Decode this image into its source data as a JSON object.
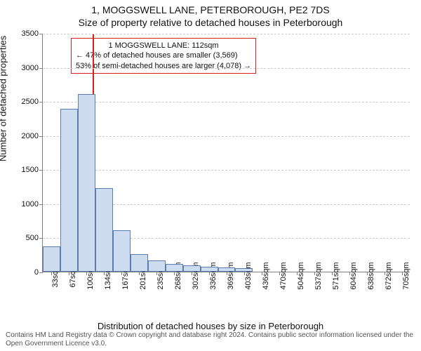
{
  "title_main": "1, MOGGSWELL LANE, PETERBOROUGH, PE2 7DS",
  "title_sub": "Size of property relative to detached houses in Peterborough",
  "y_label": "Number of detached properties",
  "x_label": "Distribution of detached houses by size in Peterborough",
  "attribution": "Contains HM Land Registry data © Crown copyright and database right 2024. Contains public sector information licensed under the Open Government Licence v3.0.",
  "chart": {
    "type": "histogram",
    "y": {
      "min": 0,
      "max": 3500,
      "tick_step": 500,
      "ticks": [
        0,
        500,
        1000,
        1500,
        2000,
        2500,
        3000,
        3500
      ],
      "grid_color": "#cccccc",
      "axis_color": "#808080",
      "tick_fontsize": 11
    },
    "x": {
      "ticks": [
        "33sqm",
        "67sqm",
        "100sqm",
        "134sqm",
        "167sqm",
        "201sqm",
        "235sqm",
        "268sqm",
        "302sqm",
        "336sqm",
        "369sqm",
        "403sqm",
        "436sqm",
        "470sqm",
        "504sqm",
        "537sqm",
        "571sqm",
        "604sqm",
        "638sqm",
        "672sqm",
        "705sqm"
      ],
      "tick_fontsize": 11,
      "rotation": -90
    },
    "bars": {
      "values": [
        370,
        2390,
        2600,
        1230,
        610,
        260,
        170,
        110,
        90,
        75,
        60,
        48
      ],
      "fill_color": "#cedcef",
      "border_color": "#5a7cb0",
      "width_fraction": 1.0
    },
    "reference_line": {
      "value_sqm": 112,
      "color": "#d62020",
      "line_width": 2
    },
    "annotation": {
      "lines": [
        "1 MOGGSWELL LANE: 112sqm",
        "← 47% of detached houses are smaller (3,569)",
        "53% of semi-detached houses are larger (4,078) →"
      ],
      "border_color": "#d62020",
      "background_color": "#ffffff",
      "fontsize": 11
    },
    "plot_bg": "#ffffff",
    "title_fontsize": 14,
    "label_fontsize": 13
  }
}
